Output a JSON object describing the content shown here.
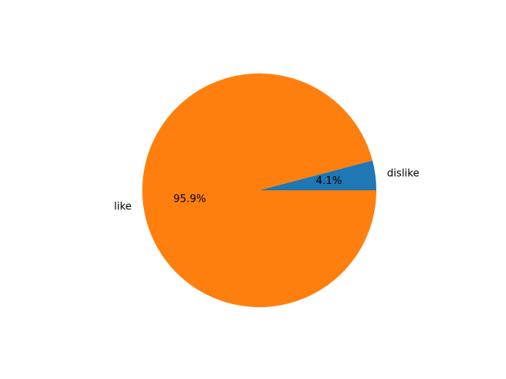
{
  "chart_data": {
    "type": "pie",
    "slices": [
      {
        "label": "dislike",
        "percent": 4.1,
        "pct_label": "4.1%",
        "color": "#1f77b4"
      },
      {
        "label": "like",
        "percent": 95.9,
        "pct_label": "95.9%",
        "color": "#ff7f0e"
      }
    ],
    "start_angle_deg": 0,
    "direction": "counterclockwise"
  }
}
